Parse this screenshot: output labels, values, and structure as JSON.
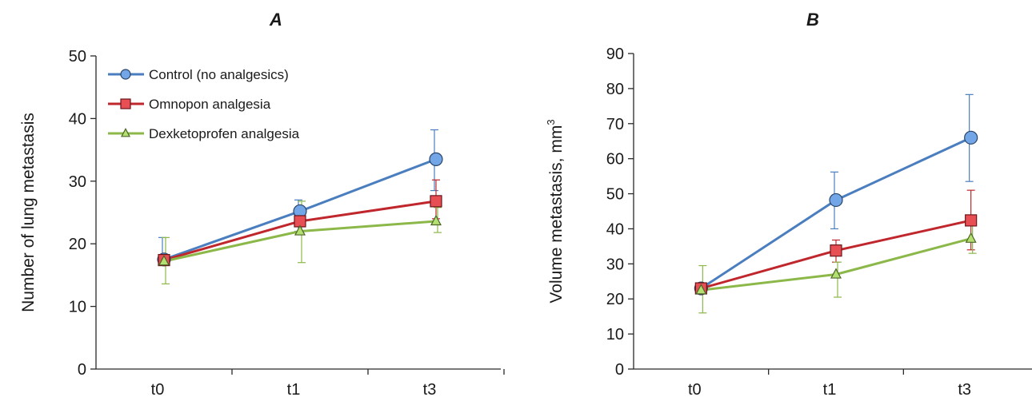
{
  "chart_data": [
    {
      "type": "line",
      "panel_label": "A",
      "title": "A",
      "xlabel": "",
      "ylabel": "Number of lung metastasis",
      "ylabel_sup": "",
      "categories": [
        "t0",
        "t1",
        "t3"
      ],
      "ylim": [
        0,
        50
      ],
      "yticks": [
        0,
        10,
        20,
        30,
        40,
        50
      ],
      "grid": false,
      "legend": "top-left",
      "series": [
        {
          "name": "Control (no analgesics)",
          "color": "#4a7ebf",
          "marker": "circle",
          "values": [
            17.5,
            25.2,
            33.5
          ],
          "err_high": [
            21.0,
            27.0,
            38.2
          ],
          "err_low": [
            17.5,
            22.0,
            28.5
          ]
        },
        {
          "name": "Omnopon analgesia",
          "color": "#c0272d",
          "marker": "square",
          "values": [
            17.4,
            23.6,
            26.8
          ],
          "err_high": [
            17.4,
            25.6,
            30.2
          ],
          "err_low": [
            17.4,
            21.8,
            24.0
          ]
        },
        {
          "name": "Dexketoprofen analgesia",
          "color": "#8cb84a",
          "marker": "triangle",
          "values": [
            17.2,
            22.0,
            23.6
          ],
          "err_high": [
            21.0,
            26.8,
            25.8
          ],
          "err_low": [
            13.6,
            17.0,
            21.8
          ]
        }
      ]
    },
    {
      "type": "line",
      "panel_label": "B",
      "title": "B",
      "xlabel": "",
      "ylabel": "Volume metastasis, mm",
      "ylabel_sup": "3",
      "categories": [
        "t0",
        "t1",
        "t3"
      ],
      "ylim": [
        0,
        90
      ],
      "yticks": [
        0,
        10,
        20,
        30,
        40,
        50,
        60,
        70,
        80,
        90
      ],
      "grid": false,
      "legend": "none",
      "series": [
        {
          "name": "Control (no analgesics)",
          "color": "#4a7ebf",
          "marker": "circle",
          "values": [
            23.0,
            48.2,
            66.0
          ],
          "err_high": [
            23.0,
            56.2,
            78.3
          ],
          "err_low": [
            23.0,
            40.0,
            53.5
          ]
        },
        {
          "name": "Omnopon analgesia",
          "color": "#c0272d",
          "marker": "square",
          "values": [
            23.0,
            33.8,
            42.4
          ],
          "err_high": [
            23.0,
            36.8,
            51.0
          ],
          "err_low": [
            23.0,
            30.5,
            34.0
          ]
        },
        {
          "name": "Dexketoprofen analgesia",
          "color": "#8cb84a",
          "marker": "triangle",
          "values": [
            22.5,
            27.0,
            37.2
          ],
          "err_high": [
            29.5,
            30.5,
            41.0
          ],
          "err_low": [
            16.0,
            20.5,
            33.0
          ]
        }
      ]
    }
  ]
}
